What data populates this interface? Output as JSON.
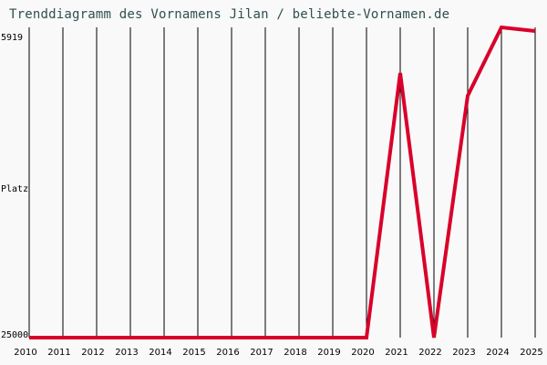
{
  "title": "Trenddiagramm des Vornamens Jilan / beliebte-Vornamen.de",
  "y_axis": {
    "top_label": "5919",
    "mid_label": "Platz",
    "bottom_label": "25000"
  },
  "colors": {
    "line": "#d9002a",
    "grid": "#000000",
    "title": "#2f4f4f",
    "background": "#f9f9f9"
  },
  "chart_data": {
    "type": "line",
    "title": "Trenddiagramm des Vornamens Jilan / beliebte-Vornamen.de",
    "xlabel": "",
    "ylabel": "Platz",
    "categories": [
      "2010",
      "2011",
      "2012",
      "2013",
      "2014",
      "2015",
      "2016",
      "2017",
      "2018",
      "2019",
      "2020",
      "2021",
      "2022",
      "2023",
      "2024",
      "2025"
    ],
    "series": [
      {
        "name": "Jilan",
        "values": [
          25000,
          25000,
          25000,
          25000,
          25000,
          25000,
          25000,
          25000,
          25000,
          25000,
          25000,
          8725,
          25000,
          10128,
          5919,
          6144
        ]
      }
    ],
    "ylim": [
      25000,
      5919
    ],
    "y_inverted": true,
    "grid": "vertical",
    "legend": "none"
  }
}
